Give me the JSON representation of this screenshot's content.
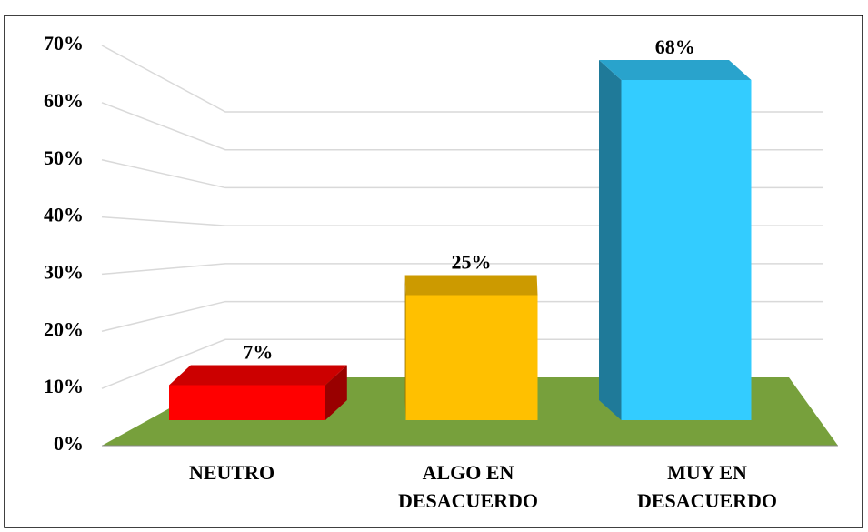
{
  "chart_data": {
    "type": "bar3d",
    "categories": [
      "NEUTRO",
      "ALGO EN DESACUERDO",
      "MUY EN DESACUERDO"
    ],
    "values": [
      7,
      25,
      68
    ],
    "value_labels": [
      "7%",
      "25%",
      "68%"
    ],
    "colors": [
      "#ff0000",
      "#ffc000",
      "#33ccff"
    ],
    "ylim": [
      0,
      70
    ],
    "yticks": [
      {
        "value": 0,
        "label": "0%"
      },
      {
        "value": 10,
        "label": "10%"
      },
      {
        "value": 20,
        "label": "20%"
      },
      {
        "value": 30,
        "label": "30%"
      },
      {
        "value": 40,
        "label": "40%"
      },
      {
        "value": 50,
        "label": "50%"
      },
      {
        "value": 60,
        "label": "60%"
      },
      {
        "value": 70,
        "label": "70%"
      }
    ],
    "grid": true
  }
}
